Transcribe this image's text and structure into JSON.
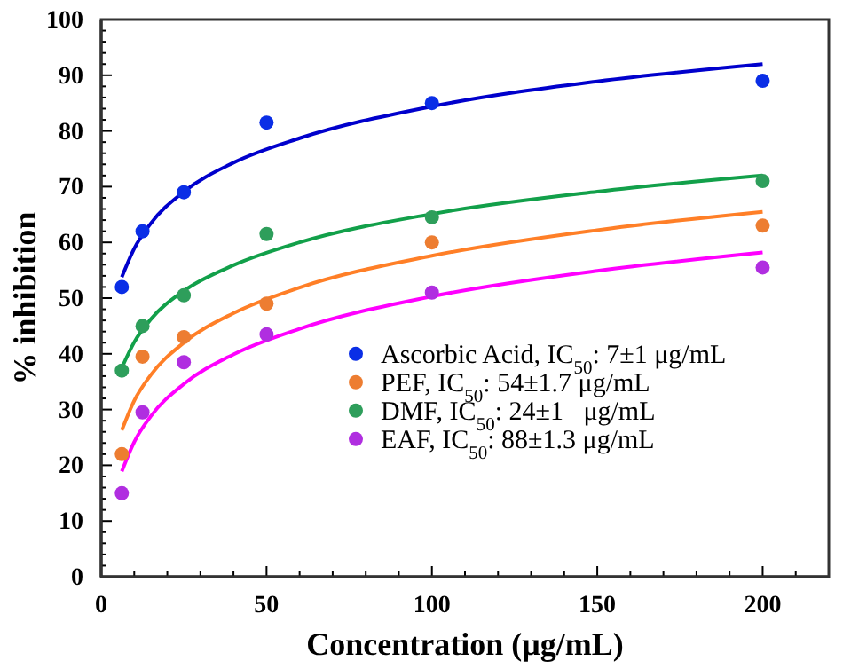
{
  "chart_data": {
    "type": "scatter",
    "xlabel": "Concentration (μg/mL)",
    "ylabel": "% inhibition",
    "xlim": [
      0,
      220
    ],
    "ylim": [
      0,
      100
    ],
    "xticks": [
      0,
      {
        "value": 10,
        "label": null
      },
      {
        "value": 20,
        "label": null
      },
      {
        "value": 30,
        "label": null
      },
      {
        "value": 40,
        "label": null
      },
      50,
      {
        "value": 60,
        "label": null
      },
      {
        "value": 70,
        "label": null
      },
      {
        "value": 80,
        "label": null
      },
      {
        "value": 90,
        "label": null
      },
      100,
      {
        "value": 110,
        "label": null
      },
      {
        "value": 120,
        "label": null
      },
      {
        "value": 130,
        "label": null
      },
      {
        "value": 140,
        "label": null
      },
      150,
      {
        "value": 160,
        "label": null
      },
      {
        "value": 170,
        "label": null
      },
      {
        "value": 180,
        "label": null
      },
      {
        "value": 190,
        "label": null
      },
      200,
      {
        "value": 210,
        "label": null
      }
    ],
    "yticks": [
      0,
      {
        "value": 2,
        "label": null
      },
      {
        "value": 4,
        "label": null
      },
      {
        "value": 6,
        "label": null
      },
      {
        "value": 8,
        "label": null
      },
      10,
      {
        "value": 12,
        "label": null
      },
      {
        "value": 14,
        "label": null
      },
      {
        "value": 16,
        "label": null
      },
      {
        "value": 18,
        "label": null
      },
      20,
      {
        "value": 22,
        "label": null
      },
      {
        "value": 24,
        "label": null
      },
      {
        "value": 26,
        "label": null
      },
      {
        "value": 28,
        "label": null
      },
      30,
      {
        "value": 32,
        "label": null
      },
      {
        "value": 34,
        "label": null
      },
      {
        "value": 36,
        "label": null
      },
      {
        "value": 38,
        "label": null
      },
      40,
      {
        "value": 42,
        "label": null
      },
      {
        "value": 44,
        "label": null
      },
      {
        "value": 46,
        "label": null
      },
      {
        "value": 48,
        "label": null
      },
      50,
      {
        "value": 52,
        "label": null
      },
      {
        "value": 54,
        "label": null
      },
      {
        "value": 56,
        "label": null
      },
      {
        "value": 58,
        "label": null
      },
      60,
      {
        "value": 62,
        "label": null
      },
      {
        "value": 64,
        "label": null
      },
      {
        "value": 66,
        "label": null
      },
      {
        "value": 68,
        "label": null
      },
      70,
      {
        "value": 72,
        "label": null
      },
      {
        "value": 74,
        "label": null
      },
      {
        "value": 76,
        "label": null
      },
      {
        "value": 78,
        "label": null
      },
      80,
      {
        "value": 82,
        "label": null
      },
      {
        "value": 84,
        "label": null
      },
      {
        "value": 86,
        "label": null
      },
      {
        "value": 88,
        "label": null
      },
      90,
      {
        "value": 92,
        "label": null
      },
      {
        "value": 94,
        "label": null
      },
      {
        "value": 96,
        "label": null
      },
      {
        "value": 98,
        "label": null
      },
      100
    ],
    "legend": "bottom right",
    "grid": false,
    "marker": "circle",
    "series": [
      {
        "type": "line",
        "marker": "none",
        "color": "#0000cc",
        "x": [
          6.25,
          10,
          15,
          25,
          40,
          60,
          100,
          150,
          200
        ],
        "values": [
          53.8,
          58.9,
          63.4,
          69.1,
          74.3,
          78.7,
          84.4,
          88.9,
          92.0
        ]
      },
      {
        "type": "line",
        "marker": "none",
        "color": "#ff7f27",
        "x": [
          6.25,
          10,
          15,
          25,
          40,
          60,
          100,
          150,
          200
        ],
        "values": [
          26.3,
          31.6,
          36.2,
          42.0,
          47.3,
          51.9,
          57.6,
          62.2,
          65.5
        ]
      },
      {
        "type": "line",
        "marker": "none",
        "color": "#12a04a",
        "x": [
          6.25,
          10,
          15,
          25,
          40,
          60,
          100,
          150,
          200
        ],
        "values": [
          37.5,
          42.1,
          46.2,
          51.3,
          55.9,
          60.0,
          65.1,
          69.1,
          72.0
        ]
      },
      {
        "type": "line",
        "marker": "none",
        "color": "#ff00ff",
        "x": [
          6.25,
          10,
          15,
          25,
          40,
          60,
          100,
          150,
          200
        ],
        "values": [
          18.9,
          24.2,
          28.8,
          34.6,
          39.9,
          44.5,
          50.3,
          54.9,
          58.2
        ]
      },
      {
        "name": "Ascorbic Acid, IC$_{50}$: 7±1 μg/mL",
        "color": "#0a2ee6",
        "x": [
          6.25,
          12.5,
          25,
          50,
          100,
          200
        ],
        "values": [
          52,
          62,
          69,
          81.5,
          85,
          89
        ]
      },
      {
        "name": "PEF, IC$_{50}$: 54±1.7 μg/mL",
        "color": "#ed7d31",
        "x": [
          6.25,
          12.5,
          25,
          50,
          100,
          200
        ],
        "values": [
          22,
          39.5,
          43,
          49,
          60,
          63
        ]
      },
      {
        "name": "DMF, IC$_{50}$: 24±1   μg/mL",
        "color": "#2e9e5b",
        "x": [
          6.25,
          12.5,
          25,
          50,
          100,
          200
        ],
        "values": [
          37,
          45,
          50.5,
          61.5,
          64.5,
          71
        ]
      },
      {
        "name": "EAF, IC$_{50}$: 88±1.3 μg/mL",
        "color": "#b02ee0",
        "x": [
          6.25,
          12.5,
          25,
          50,
          100,
          200
        ],
        "values": [
          15,
          29.5,
          38.5,
          43.5,
          51,
          55.5
        ]
      }
    ]
  }
}
